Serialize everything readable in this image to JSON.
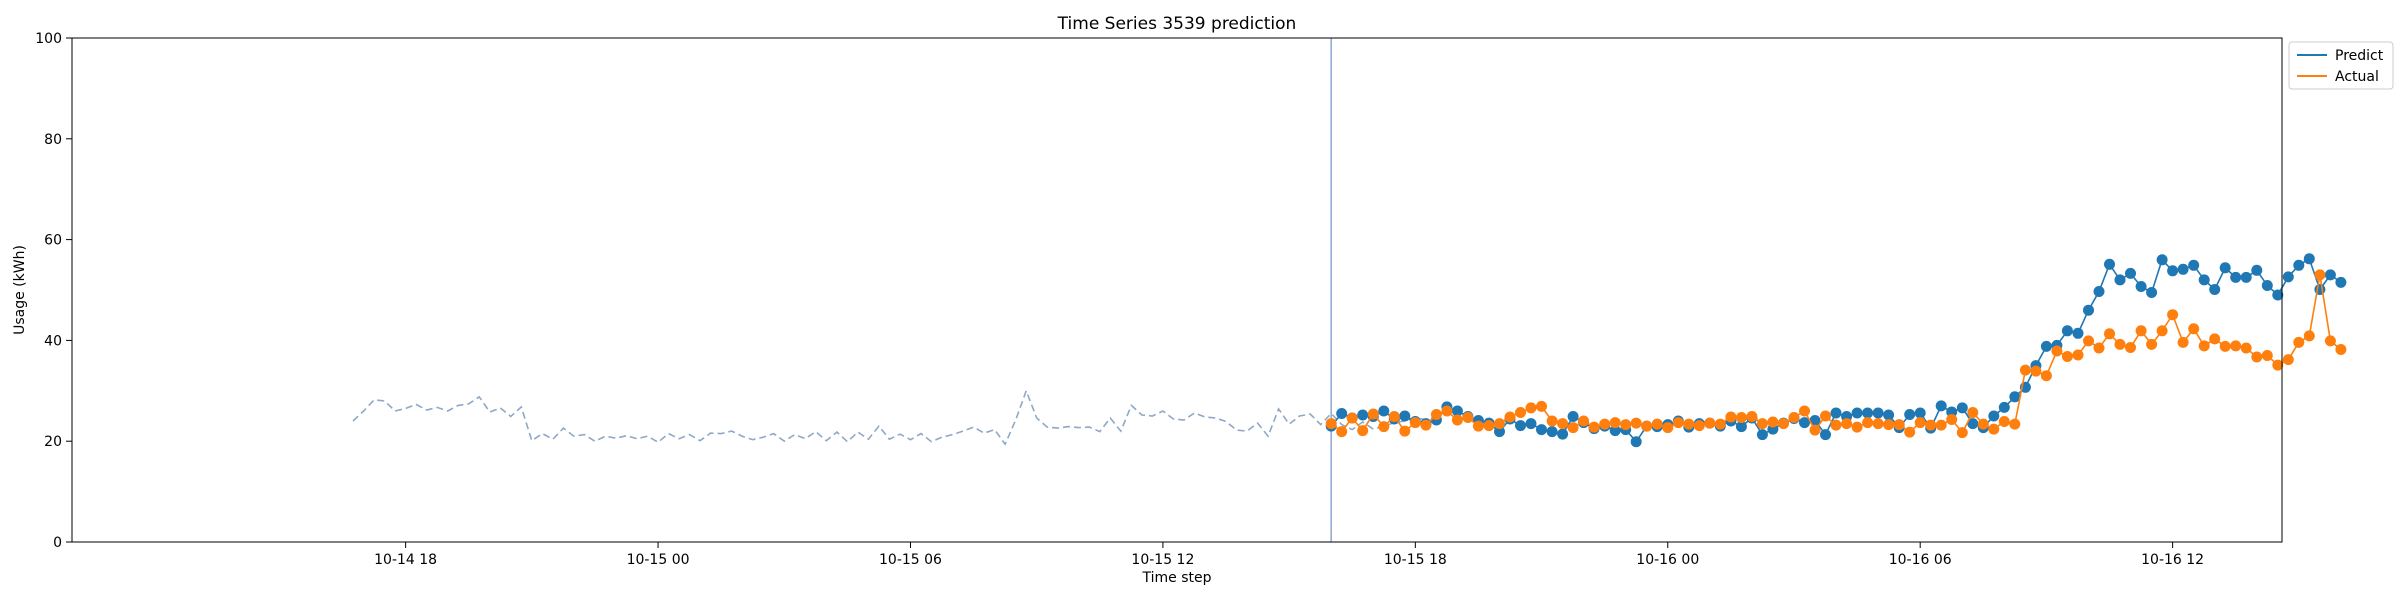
{
  "chart_data": {
    "type": "line",
    "title": "Time Series 3539 prediction",
    "xlabel": "Time step",
    "ylabel": "Usage (kWh)",
    "ylim": [
      0,
      100
    ],
    "yticks": [
      0,
      20,
      40,
      60,
      80,
      100
    ],
    "xlim_hours": [
      -7.93,
      44.6
    ],
    "xticks": [
      {
        "hour": 0,
        "label": "10-14 18"
      },
      {
        "hour": 6,
        "label": "10-15 00"
      },
      {
        "hour": 12,
        "label": "10-15 06"
      },
      {
        "hour": 18,
        "label": "10-15 12"
      },
      {
        "hour": 24,
        "label": "10-15 18"
      },
      {
        "hour": 30,
        "label": "10-16 00"
      },
      {
        "hour": 36,
        "label": "10-16 06"
      },
      {
        "hour": 42,
        "label": "10-16 12"
      }
    ],
    "x_start": "10-14 16:45",
    "step_hours": 0.25,
    "forecast_start": "10-15 16:00",
    "grid": false,
    "legend_position": "upper right, outside plot",
    "legend": [
      "Predict",
      "Actual"
    ],
    "colors": {
      "predict": "#1f77b4",
      "actual": "#ff7f0e",
      "history": "#8fa8c8",
      "divider": "#8fa8d0"
    },
    "series": [
      {
        "name": "history",
        "style": "dashed",
        "values": [
          24.0,
          26.0,
          28.2,
          28.0,
          26.0,
          26.5,
          27.3,
          26.2,
          26.7,
          26.0,
          27.1,
          27.4,
          28.8,
          25.8,
          26.6,
          24.9,
          26.8,
          20.1,
          21.5,
          20.4,
          22.6,
          21.0,
          21.3,
          20.0,
          21.0,
          20.6,
          21.1,
          20.5,
          21.0,
          19.8,
          21.5,
          20.5,
          21.3,
          20.1,
          21.6,
          21.5,
          22.0,
          21.0,
          20.3,
          20.8,
          21.5,
          20.0,
          21.3,
          20.5,
          21.9,
          20.1,
          21.8,
          19.9,
          21.8,
          20.4,
          23.0,
          20.4,
          21.4,
          20.3,
          21.5,
          19.9,
          20.8,
          21.3,
          22.0,
          22.8,
          21.6,
          22.3,
          19.4,
          24.2,
          30.0,
          24.6,
          22.8,
          22.6,
          22.9,
          22.7,
          22.8,
          21.9,
          24.6,
          22.0,
          27.1,
          25.2,
          25.0,
          26.0,
          24.4,
          24.2,
          25.6,
          24.8,
          24.6,
          23.9,
          22.2,
          22.0,
          23.6,
          21.0,
          26.4,
          23.4,
          25.0,
          25.4,
          23.3,
          25.5,
          23.3,
          22.3,
          23.8,
          22.4,
          23.0,
          23.7,
          24.0,
          24.6,
          24.3,
          24.2
        ]
      },
      {
        "name": "Predict",
        "values": [
          23.0,
          25.5,
          24.6,
          25.2,
          24.9,
          26.0,
          24.4,
          25.0,
          23.9,
          23.5,
          24.2,
          26.8,
          26.0,
          24.9,
          24.1,
          23.6,
          21.9,
          24.4,
          23.1,
          23.5,
          22.3,
          21.9,
          21.4,
          24.9,
          23.7,
          22.5,
          23.0,
          22.1,
          22.3,
          19.9,
          23.0,
          22.9,
          23.3,
          24.0,
          22.8,
          23.5,
          23.6,
          23.0,
          24.0,
          22.9,
          24.6,
          21.3,
          22.4,
          23.6,
          24.5,
          23.7,
          24.1,
          21.3,
          25.6,
          24.9,
          25.6,
          25.6,
          25.6,
          25.2,
          22.7,
          25.3,
          25.6,
          22.6,
          27.0,
          25.8,
          26.6,
          23.5,
          22.7,
          25.0,
          26.7,
          28.8,
          30.7,
          35.0,
          38.8,
          39.0,
          41.9,
          41.4,
          46.0,
          49.7,
          55.1,
          52.0,
          53.3,
          50.7,
          49.5,
          56.0,
          53.8,
          54.1,
          54.9,
          52.0,
          50.1,
          54.4,
          52.5,
          52.5,
          53.9,
          50.9,
          49.0,
          52.6,
          54.9,
          56.2,
          50.1,
          53.0,
          51.5
        ]
      },
      {
        "name": "Actual",
        "values": [
          23.5,
          21.9,
          24.6,
          22.1,
          25.4,
          22.9,
          24.9,
          22.0,
          23.7,
          23.2,
          25.3,
          26.0,
          24.2,
          24.7,
          23.0,
          23.1,
          23.5,
          24.8,
          25.7,
          26.6,
          26.9,
          24.0,
          23.5,
          22.7,
          24.0,
          22.8,
          23.4,
          23.7,
          23.3,
          23.6,
          23.0,
          23.4,
          22.7,
          23.7,
          23.4,
          23.1,
          23.6,
          23.4,
          24.8,
          24.7,
          24.9,
          23.5,
          23.8,
          23.5,
          24.7,
          26.0,
          22.2,
          25.0,
          23.2,
          23.5,
          22.8,
          23.7,
          23.5,
          23.3,
          23.3,
          21.8,
          23.7,
          23.2,
          23.2,
          24.3,
          21.7,
          25.7,
          23.4,
          22.4,
          23.9,
          23.4,
          34.1,
          33.9,
          33.0,
          37.9,
          36.8,
          37.1,
          39.9,
          38.5,
          41.3,
          39.2,
          38.6,
          41.9,
          39.2,
          41.9,
          45.1,
          39.6,
          42.3,
          38.9,
          40.3,
          38.8,
          38.9,
          38.5,
          36.7,
          37.0,
          35.1,
          36.2,
          39.6,
          40.9,
          53.0,
          39.9,
          38.2
        ]
      }
    ]
  }
}
